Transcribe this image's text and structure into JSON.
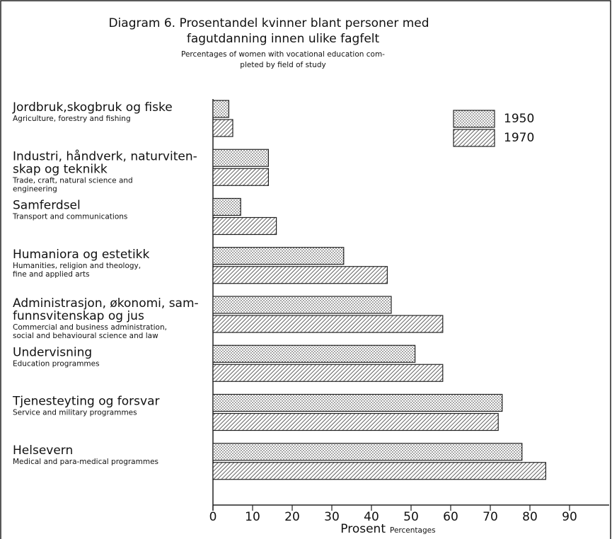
{
  "chart_data": {
    "type": "barh",
    "title": [
      "Diagram 6. Prosentandel kvinner blant personer med",
      "fagutdanning innen ulike fagfelt"
    ],
    "subtitle": [
      "Percentages of women with vocational education com-",
      "pleted by field of study"
    ],
    "categories": [
      {
        "no": [
          "Jordbruk,skogbruk og fiske"
        ],
        "en": [
          "Agriculture, forestry and fishing"
        ]
      },
      {
        "no": [
          "Industri, håndverk, naturviten-",
          "skap og teknikk"
        ],
        "en": [
          "Trade, craft, natural science and",
          "engineering"
        ]
      },
      {
        "no": [
          "Samferdsel"
        ],
        "en": [
          "Transport and communications"
        ]
      },
      {
        "no": [
          "Humaniora og estetikk"
        ],
        "en": [
          "Humanities, religion and theology,",
          "fine and applied arts"
        ]
      },
      {
        "no": [
          "Administrasjon, økonomi, sam-",
          "funnsvitenskap og jus"
        ],
        "en": [
          "Commercial and business administration,",
          "social and behavioural science and law"
        ]
      },
      {
        "no": [
          "Undervisning"
        ],
        "en": [
          "Education programmes"
        ]
      },
      {
        "no": [
          "Tjenesteyting og forsvar"
        ],
        "en": [
          "Service and military programmes"
        ]
      },
      {
        "no": [
          "Helsevern"
        ],
        "en": [
          "Medical and para-medical programmes"
        ]
      }
    ],
    "series": [
      {
        "name": "1950",
        "color": "#222",
        "pattern": "dots",
        "values": [
          4,
          14,
          7,
          33,
          45,
          51,
          73,
          78
        ]
      },
      {
        "name": "1970",
        "color": "#222",
        "pattern": "hatch",
        "values": [
          5,
          14,
          16,
          44,
          58,
          58,
          72,
          84
        ]
      }
    ],
    "xlabel": "Prosent",
    "xlabel_en": "Percentages",
    "xlim": [
      0,
      100
    ],
    "xticks": [
      0,
      10,
      20,
      30,
      40,
      50,
      60,
      70,
      80,
      90
    ]
  }
}
